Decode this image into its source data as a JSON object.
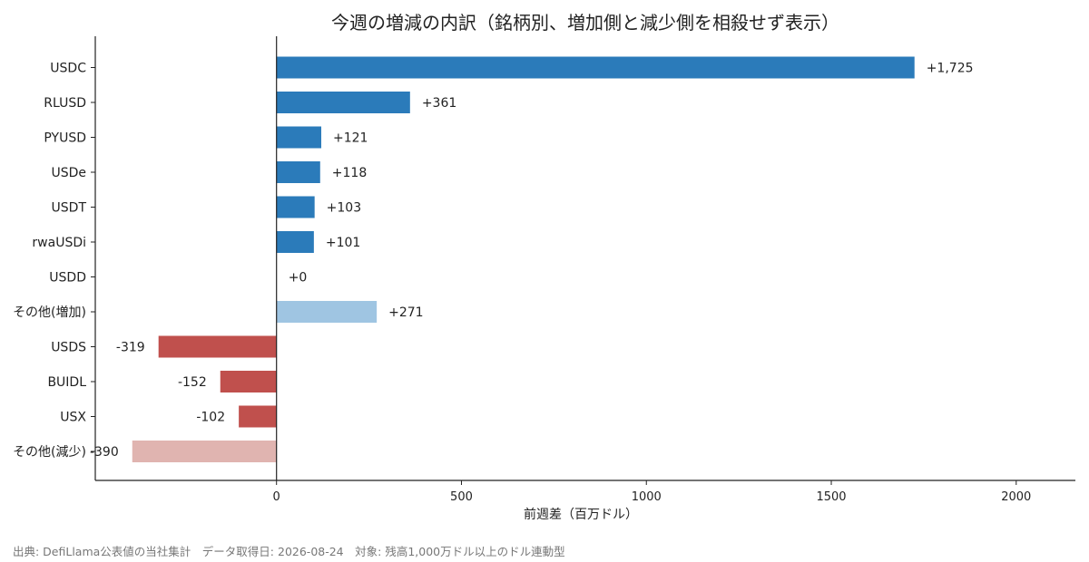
{
  "chart_data": {
    "type": "bar",
    "orientation": "horizontal",
    "title": "今週の増減の内訳（銘柄別、増加側と減少側を相殺せず表示）",
    "xlabel": "前週差（百万ドル）",
    "ylabel": "",
    "xlim": [
      -490,
      2160
    ],
    "xticks": [
      0,
      500,
      1000,
      1500,
      2000
    ],
    "grid": false,
    "categories": [
      "USDC",
      "RLUSD",
      "PYUSD",
      "USDe",
      "USDT",
      "rwaUSDi",
      "USDD",
      "その他(増加)",
      "USDS",
      "BUIDL",
      "USX",
      "その他(減少)"
    ],
    "values": [
      1725,
      361,
      121,
      118,
      103,
      101,
      0,
      271,
      -319,
      -152,
      -102,
      -390
    ],
    "data_labels": [
      "+1,725",
      "+361",
      "+121",
      "+118",
      "+103",
      "+101",
      "+0",
      "+271",
      "-319",
      "-152",
      "-102",
      "-390"
    ],
    "colors": {
      "increase": "#2b7bba",
      "increase_other": "#9fc5e2",
      "decrease": "#c0504d",
      "decrease_other": "#e0b4b0"
    },
    "bar_color_keys": [
      "increase",
      "increase",
      "increase",
      "increase",
      "increase",
      "increase",
      "increase",
      "increase_other",
      "decrease",
      "decrease",
      "decrease",
      "decrease_other"
    ]
  },
  "footer": {
    "note": "出典: DefiLlama公表値の当社集計　データ取得日: 2026-08-24　対象: 残高1,000万ドル以上のドル連動型"
  }
}
